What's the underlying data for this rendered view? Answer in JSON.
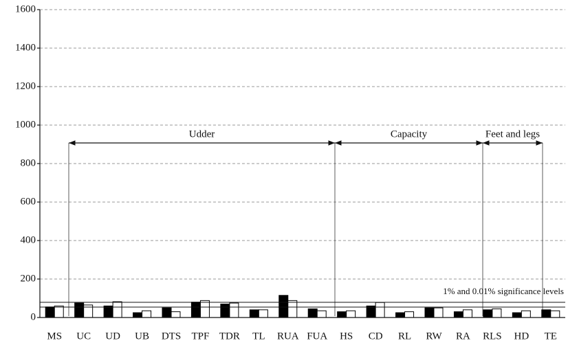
{
  "chart_data": {
    "type": "bar",
    "categories": [
      "MS",
      "UC",
      "UD",
      "UB",
      "DTS",
      "TPF",
      "TDR",
      "TL",
      "RUA",
      "FUA",
      "HS",
      "CD",
      "RL",
      "RW",
      "RA",
      "RLS",
      "HD",
      "TE"
    ],
    "series": [
      {
        "color": "#000000",
        "values": [
          55,
          75,
          60,
          25,
          50,
          80,
          70,
          40,
          115,
          45,
          30,
          60,
          25,
          50,
          30,
          40,
          25,
          40
        ]
      },
      {
        "color": "#ffffff",
        "values": [
          60,
          65,
          82,
          35,
          30,
          88,
          75,
          40,
          88,
          35,
          35,
          78,
          30,
          50,
          40,
          45,
          35,
          35
        ]
      }
    ],
    "ylim": [
      0,
      1600
    ],
    "yticks": [
      0,
      200,
      400,
      600,
      800,
      1000,
      1200,
      1400,
      1600
    ],
    "grid": true,
    "reference_lines": [
      54,
      79
    ],
    "reference_label": "1% and 0.01% significance levels",
    "groups": [
      "Udder",
      "Capacity",
      "Feet and legs"
    ]
  }
}
